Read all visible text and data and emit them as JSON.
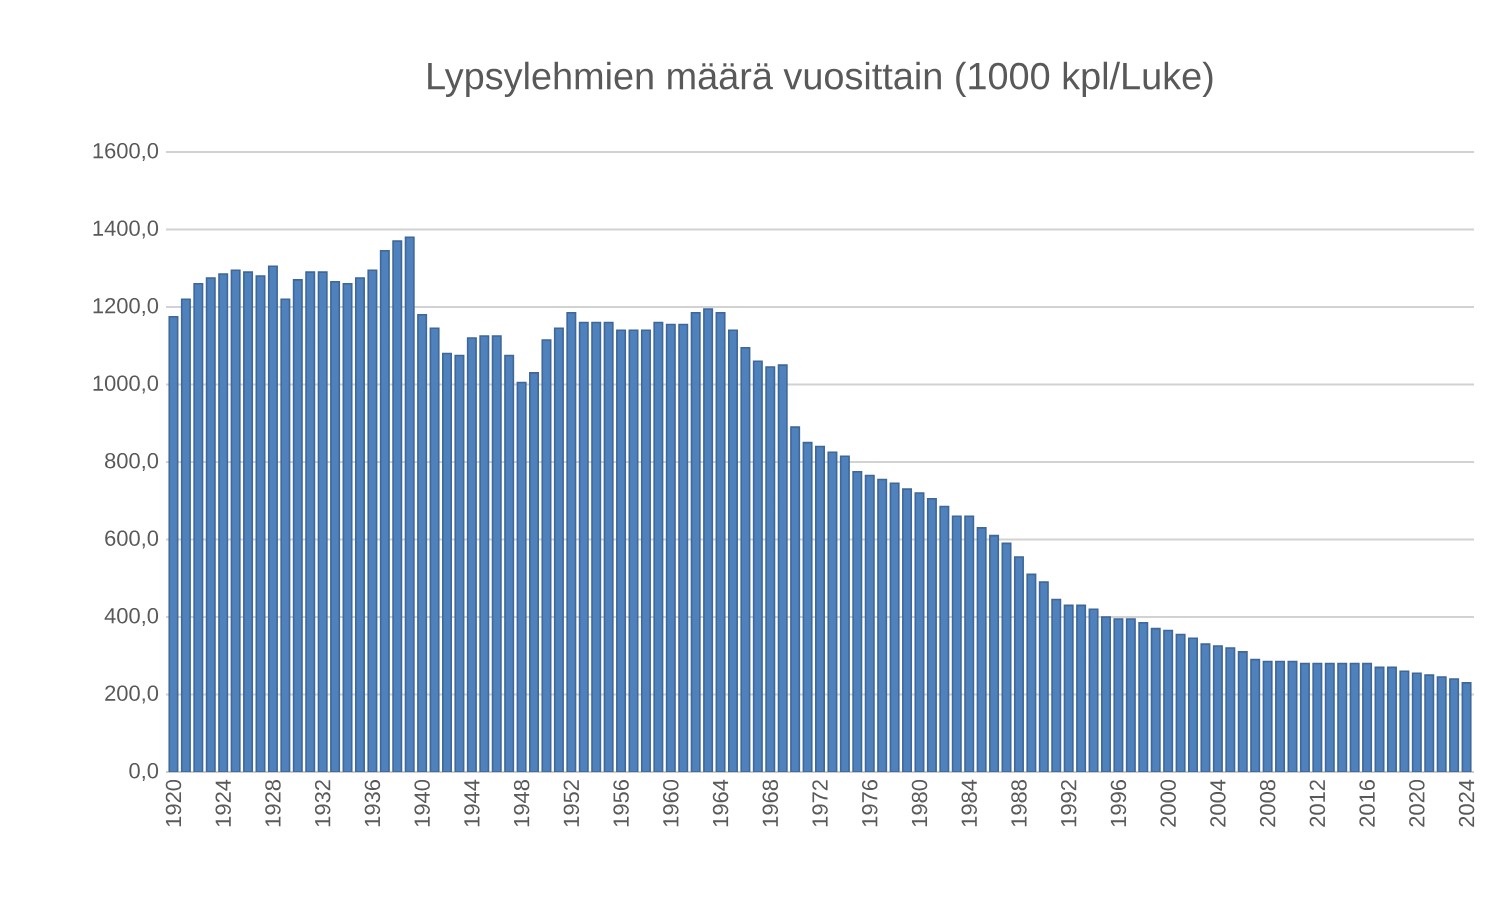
{
  "chart_data": {
    "type": "bar",
    "title": "Lypsylehmien  määrä vuosittain (1000 kpl/Luke)",
    "categories": [
      "1920",
      null,
      null,
      null,
      "1924",
      null,
      null,
      null,
      "1928",
      null,
      null,
      null,
      "1932",
      null,
      null,
      null,
      "1936",
      null,
      null,
      null,
      "1940",
      null,
      null,
      null,
      "1944",
      null,
      null,
      null,
      "1948",
      null,
      null,
      null,
      "1952",
      null,
      null,
      null,
      "1956",
      null,
      null,
      null,
      "1960",
      null,
      null,
      null,
      "1964",
      null,
      null,
      null,
      "1968",
      null,
      null,
      null,
      "1972",
      null,
      null,
      null,
      "1976",
      null,
      null,
      null,
      "1980",
      null,
      null,
      null,
      "1984",
      null,
      null,
      null,
      "1988",
      null,
      null,
      null,
      "1992",
      null,
      null,
      null,
      "1996",
      null,
      null,
      null,
      "2000",
      null,
      null,
      null,
      "2004",
      null,
      null,
      null,
      "2008",
      null,
      null,
      null,
      "2012",
      null,
      null,
      null,
      "2016",
      null,
      null,
      null,
      "2020",
      null,
      null,
      null,
      "2024"
    ],
    "values": [
      1175,
      1220,
      1260,
      1275,
      1285,
      1295,
      1290,
      1280,
      1305,
      1220,
      1270,
      1290,
      1290,
      1265,
      1260,
      1275,
      1295,
      1345,
      1370,
      1380,
      1180,
      1145,
      1080,
      1075,
      1120,
      1125,
      1125,
      1075,
      1005,
      1030,
      1115,
      1145,
      1185,
      1160,
      1160,
      1160,
      1140,
      1140,
      1140,
      1160,
      1155,
      1155,
      1185,
      1195,
      1185,
      1140,
      1095,
      1060,
      1045,
      1050,
      890,
      850,
      840,
      825,
      815,
      775,
      765,
      755,
      745,
      730,
      720,
      705,
      685,
      660,
      660,
      630,
      610,
      590,
      555,
      510,
      490,
      445,
      430,
      430,
      420,
      400,
      395,
      395,
      385,
      370,
      365,
      355,
      345,
      330,
      325,
      320,
      310,
      290,
      285,
      285,
      285,
      280,
      280,
      280,
      280,
      280,
      280,
      270,
      270,
      260,
      255,
      250,
      245,
      240,
      230
    ],
    "color": "#4f81bd",
    "ylim": [
      0,
      1600
    ],
    "yticks": [
      {
        "value": 0,
        "label": "0,0"
      },
      {
        "value": 200,
        "label": "200,0"
      },
      {
        "value": 400,
        "label": "400,0"
      },
      {
        "value": 600,
        "label": "600,0"
      },
      {
        "value": 800,
        "label": "800,0"
      },
      {
        "value": 1000,
        "label": "1000,0"
      },
      {
        "value": 1200,
        "label": "1200,0"
      },
      {
        "value": 1400,
        "label": "1400,0"
      },
      {
        "value": 1600,
        "label": "1600,0"
      }
    ],
    "grid": "y"
  }
}
